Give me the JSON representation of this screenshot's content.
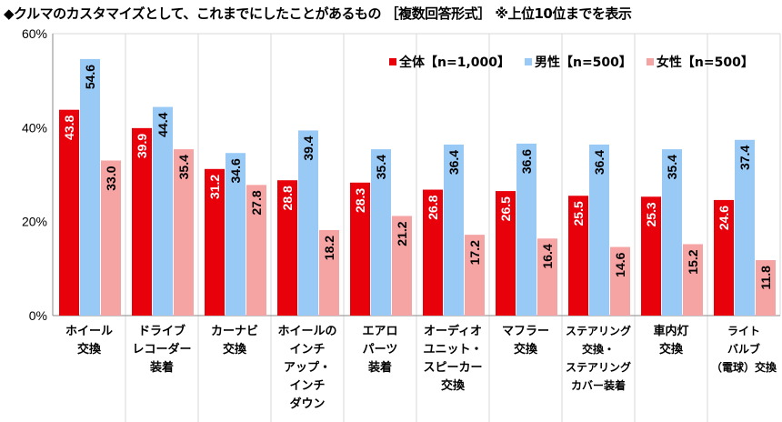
{
  "chart_data": {
    "type": "bar",
    "title": "◆クルマのカスタマイズとして、これまでにしたことがあるもの ［複数回答形式］ ※上位10位までを表示",
    "categories": [
      [
        "ホイール",
        "交換"
      ],
      [
        "ドライブ",
        "レコーダー",
        "装着"
      ],
      [
        "カーナビ",
        "交換"
      ],
      [
        "ホイールの",
        "インチ",
        "アップ・",
        "インチ",
        "ダウン"
      ],
      [
        "エアロ",
        "パーツ",
        "装着"
      ],
      [
        "オーディオ",
        "ユニット・",
        "スピーカー",
        "交換"
      ],
      [
        "マフラー",
        "交換"
      ],
      [
        "ステアリング",
        "交換・",
        "ステアリング",
        "カバー装着"
      ],
      [
        "車内灯",
        "交換"
      ],
      [
        "ライト",
        "バルブ",
        "（電球）交換"
      ]
    ],
    "series": [
      {
        "name": "全体【n=1,000】",
        "color": "#e8000b",
        "label_color": "#ffffff",
        "values": [
          43.8,
          39.9,
          31.2,
          28.8,
          28.3,
          26.8,
          26.5,
          25.5,
          25.3,
          24.6
        ]
      },
      {
        "name": "男性【n=500】",
        "color": "#99c9f5",
        "label_color": "#000000",
        "values": [
          54.6,
          44.4,
          34.6,
          39.4,
          35.4,
          36.4,
          36.6,
          36.4,
          35.4,
          37.4
        ]
      },
      {
        "name": "女性【n=500】",
        "color": "#f5a3a3",
        "label_color": "#000000",
        "values": [
          33.0,
          35.4,
          27.8,
          18.2,
          21.2,
          17.2,
          16.4,
          14.6,
          15.2,
          11.8
        ]
      }
    ],
    "yticks": [
      "0%",
      "20%",
      "40%",
      "60%"
    ],
    "ylim": [
      0,
      60
    ],
    "legend": "top-right",
    "grid": "vertical category dividers"
  }
}
